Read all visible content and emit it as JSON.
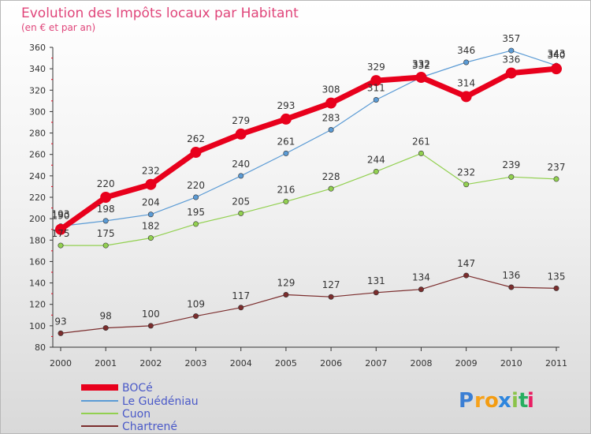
{
  "chart_data": {
    "type": "line",
    "title": "Evolution des Impôts locaux par Habitant",
    "subtitle": "(en € et par an)",
    "xlabel": "",
    "ylabel": "",
    "categories": [
      "2000",
      "2001",
      "2002",
      "2003",
      "2004",
      "2005",
      "2006",
      "2007",
      "2008",
      "2009",
      "2010",
      "2011"
    ],
    "ylim": [
      80,
      360
    ],
    "yticks": [
      80,
      100,
      120,
      140,
      160,
      180,
      200,
      220,
      240,
      260,
      280,
      300,
      320,
      340,
      360
    ],
    "grid": false,
    "legend_position": "bottom-left",
    "series": [
      {
        "name": "BOCé",
        "color": "#e8001c",
        "values": [
          190,
          220,
          232,
          262,
          279,
          293,
          308,
          329,
          332,
          314,
          336,
          340
        ]
      },
      {
        "name": "Le Guédéniau",
        "color": "#5b9bd5",
        "values": [
          193,
          198,
          204,
          220,
          240,
          261,
          283,
          311,
          332,
          346,
          357,
          343
        ]
      },
      {
        "name": "Cuon",
        "color": "#92d050",
        "values": [
          175,
          175,
          182,
          195,
          205,
          216,
          228,
          244,
          261,
          232,
          239,
          237
        ]
      },
      {
        "name": "Chartrené",
        "color": "#7b2d2d",
        "values": [
          93,
          98,
          100,
          109,
          117,
          129,
          127,
          131,
          134,
          147,
          136,
          135
        ]
      }
    ]
  },
  "logo": {
    "text": "Proxiti",
    "letters": [
      "P",
      "r",
      "o",
      "x",
      "i",
      "t",
      "i"
    ],
    "colors": [
      "#3b7fd4",
      "#f7a21b",
      "#f39c12",
      "#2e86de",
      "#8bc34a",
      "#27ae60",
      "#e91e63"
    ]
  }
}
